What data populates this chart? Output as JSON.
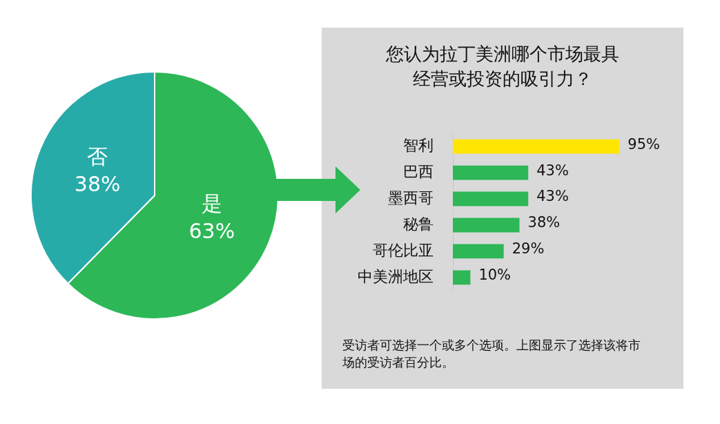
{
  "chart_data": [
    {
      "type": "pie",
      "categories": [
        "是",
        "否"
      ],
      "values": [
        63,
        38
      ],
      "colors": [
        "#2db757",
        "#27aba9"
      ],
      "value_labels": [
        "63%",
        "38%"
      ],
      "data_labels": true
    },
    {
      "type": "bar",
      "orientation": "horizontal",
      "title": "您认为拉丁美洲哪个市场最具经营或投资的吸引力？",
      "categories": [
        "智利",
        "巴西",
        "墨西哥",
        "秘鲁",
        "哥伦比亚",
        "中美洲地区"
      ],
      "values": [
        95,
        43,
        43,
        38,
        29,
        10
      ],
      "colors": [
        "#ffe600",
        "#2db757",
        "#2db757",
        "#2db757",
        "#2db757",
        "#2db757"
      ],
      "value_labels": [
        "95%",
        "43%",
        "43%",
        "38%",
        "29%",
        "10%"
      ],
      "tick_labels": "y",
      "annotations": [
        "受访者可选择一个或多个选项。上图显示了选择该将市场的受访者百分比。"
      ]
    }
  ]
}
